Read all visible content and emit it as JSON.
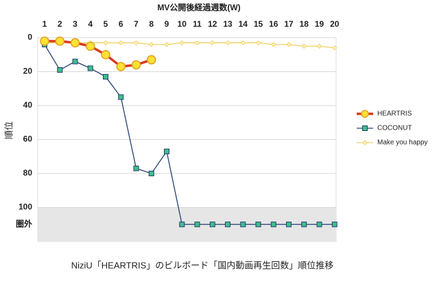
{
  "chart_data": {
    "type": "line",
    "xlabel": "MV公開後経過週数(W)",
    "ylabel": "順位",
    "caption": "NiziU「HEARTRIS」のビルボード「国内動画再生回数」順位推移",
    "x": [
      1,
      2,
      3,
      4,
      5,
      6,
      7,
      8,
      9,
      10,
      11,
      12,
      13,
      14,
      15,
      16,
      17,
      18,
      19,
      20
    ],
    "xlim": [
      0.55,
      20.1
    ],
    "xticks": [
      1,
      2,
      3,
      4,
      5,
      6,
      7,
      8,
      9,
      10,
      11,
      12,
      13,
      14,
      15,
      16,
      17,
      18,
      19,
      20
    ],
    "ylim": [
      0,
      120
    ],
    "y_inverted": true,
    "yticks": [
      0,
      20,
      40,
      60,
      80,
      100,
      {
        "value": 110,
        "label": "圏外"
      }
    ],
    "shaded_yrange": [
      100,
      120
    ],
    "grid": true,
    "legend": "right",
    "series": [
      {
        "name": "HEARTRIS",
        "color": "#d93a1e",
        "marker": "circle",
        "marker_color": "#ffe234",
        "values": [
          2,
          2,
          3,
          5,
          10,
          17,
          16,
          13,
          null,
          null,
          null,
          null,
          null,
          null,
          null,
          null,
          null,
          null,
          null,
          null
        ]
      },
      {
        "name": "COCONUT",
        "color": "#233f73",
        "marker": "square",
        "marker_color": "#3fbf86",
        "values": [
          4,
          19,
          14,
          18,
          23,
          35,
          77,
          80,
          67,
          110,
          110,
          110,
          110,
          110,
          110,
          110,
          110,
          110,
          110,
          110
        ]
      },
      {
        "name": "Make you happy",
        "color": "#f1d060",
        "marker": "diamond",
        "marker_color": "#fff6cc",
        "values": [
          3,
          3,
          3,
          3,
          3,
          3,
          3,
          4,
          4,
          3,
          3,
          3,
          3,
          3,
          3,
          4,
          4,
          5,
          5,
          6
        ]
      }
    ]
  }
}
